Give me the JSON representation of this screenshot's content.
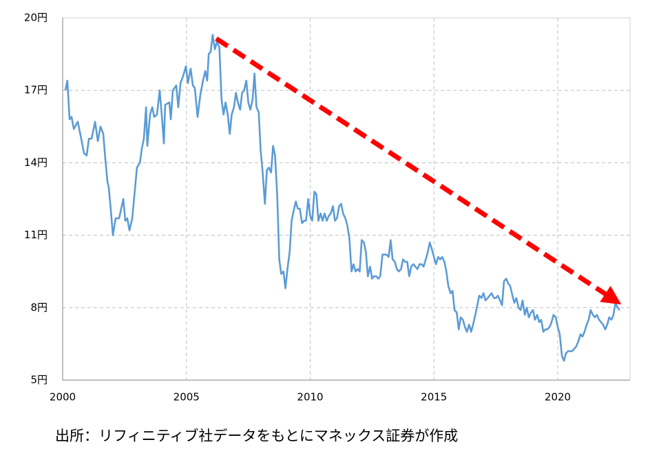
{
  "chart_data": {
    "type": "line",
    "footnote": "出所：リフィニティブ社データをもとにマネックス証券が作成",
    "xlim": [
      2000,
      2022.92
    ],
    "xticks": [
      2000,
      2005,
      2010,
      2015,
      2020
    ],
    "ylim": [
      5,
      20
    ],
    "yticks": [
      {
        "value": 5,
        "label": "5円"
      },
      {
        "value": 8,
        "label": "8円"
      },
      {
        "value": 11,
        "label": "11円"
      },
      {
        "value": 14,
        "label": "14円"
      },
      {
        "value": 17,
        "label": "17円"
      },
      {
        "value": 20,
        "label": "20円"
      }
    ],
    "grid": true,
    "x": [
      2000.11,
      2000.19,
      2000.28,
      2000.36,
      2000.45,
      2000.61,
      2000.75,
      2000.86,
      2000.97,
      2001.06,
      2001.17,
      2001.31,
      2001.42,
      2001.53,
      2001.64,
      2001.72,
      2001.81,
      2001.86,
      2001.95,
      2002.03,
      2002.14,
      2002.28,
      2002.45,
      2002.53,
      2002.61,
      2002.7,
      2002.81,
      2002.92,
      2003.0,
      2003.12,
      2003.2,
      2003.28,
      2003.37,
      2003.42,
      2003.53,
      2003.62,
      2003.7,
      2003.81,
      2003.92,
      2004.01,
      2004.09,
      2004.14,
      2004.31,
      2004.37,
      2004.45,
      2004.59,
      2004.67,
      2004.76,
      2004.87,
      2004.98,
      2005.06,
      2005.17,
      2005.26,
      2005.34,
      2005.45,
      2005.56,
      2005.67,
      2005.76,
      2005.84,
      2005.9,
      2005.98,
      2006.06,
      2006.15,
      2006.23,
      2006.33,
      2006.42,
      2006.5,
      2006.58,
      2006.67,
      2006.75,
      2006.83,
      2006.92,
      2007.0,
      2007.08,
      2007.17,
      2007.25,
      2007.33,
      2007.42,
      2007.5,
      2007.58,
      2007.67,
      2007.75,
      2007.83,
      2007.92,
      2008.0,
      2008.08,
      2008.17,
      2008.25,
      2008.33,
      2008.42,
      2008.5,
      2008.58,
      2008.67,
      2008.75,
      2008.83,
      2008.92,
      2009.0,
      2009.08,
      2009.17,
      2009.25,
      2009.33,
      2009.42,
      2009.5,
      2009.58,
      2009.67,
      2009.75,
      2009.83,
      2009.92,
      2010.0,
      2010.08,
      2010.17,
      2010.25,
      2010.33,
      2010.42,
      2010.5,
      2010.58,
      2010.67,
      2010.75,
      2010.83,
      2010.92,
      2011.0,
      2011.08,
      2011.17,
      2011.25,
      2011.33,
      2011.42,
      2011.5,
      2011.58,
      2011.67,
      2011.75,
      2011.83,
      2011.92,
      2012.0,
      2012.08,
      2012.17,
      2012.25,
      2012.33,
      2012.42,
      2012.5,
      2012.58,
      2012.67,
      2012.75,
      2012.83,
      2012.92,
      2013.0,
      2013.08,
      2013.17,
      2013.25,
      2013.33,
      2013.42,
      2013.5,
      2013.58,
      2013.67,
      2013.75,
      2013.83,
      2013.92,
      2014.0,
      2014.08,
      2014.17,
      2014.25,
      2014.33,
      2014.42,
      2014.5,
      2014.58,
      2014.67,
      2014.75,
      2014.83,
      2014.92,
      2015.0,
      2015.08,
      2015.17,
      2015.25,
      2015.33,
      2015.42,
      2015.5,
      2015.58,
      2015.67,
      2015.75,
      2015.83,
      2015.92,
      2016.0,
      2016.08,
      2016.17,
      2016.25,
      2016.33,
      2016.42,
      2016.5,
      2016.58,
      2016.67,
      2016.75,
      2016.83,
      2016.92,
      2017.0,
      2017.08,
      2017.17,
      2017.25,
      2017.33,
      2017.42,
      2017.5,
      2017.58,
      2017.67,
      2017.75,
      2017.83,
      2017.92,
      2018.0,
      2018.08,
      2018.17,
      2018.25,
      2018.33,
      2018.42,
      2018.5,
      2018.58,
      2018.67,
      2018.75,
      2018.83,
      2018.92,
      2019.0,
      2019.08,
      2019.17,
      2019.25,
      2019.33,
      2019.42,
      2019.5,
      2019.58,
      2019.67,
      2019.75,
      2019.83,
      2019.92,
      2020.0,
      2020.08,
      2020.17,
      2020.25,
      2020.33,
      2020.42,
      2020.5,
      2020.58,
      2020.67,
      2020.75,
      2020.83,
      2020.92,
      2021.0,
      2021.08,
      2021.17,
      2021.25,
      2021.33,
      2021.42,
      2021.5,
      2021.58,
      2021.67,
      2021.75,
      2021.83,
      2021.92,
      2022.0,
      2022.08,
      2022.17,
      2022.25,
      2022.33,
      2022.42,
      2022.5
    ],
    "series": [
      {
        "color": "#5b9bd5",
        "values": [
          17.0,
          17.4,
          15.8,
          15.9,
          15.4,
          15.7,
          15.0,
          14.4,
          14.3,
          15.0,
          15.0,
          15.7,
          14.9,
          15.5,
          15.2,
          14.2,
          13.2,
          13.0,
          12.0,
          11.0,
          11.7,
          11.7,
          12.5,
          11.6,
          11.7,
          11.2,
          11.7,
          12.9,
          13.8,
          14.0,
          14.6,
          15.0,
          16.3,
          14.7,
          16.0,
          16.3,
          15.9,
          16.0,
          17.0,
          15.9,
          14.8,
          16.4,
          16.5,
          15.8,
          17.0,
          17.2,
          16.3,
          17.3,
          17.6,
          18.0,
          17.3,
          17.9,
          17.2,
          17.1,
          15.9,
          16.8,
          17.4,
          17.8,
          17.4,
          18.5,
          18.6,
          19.3,
          18.7,
          19.0,
          18.8,
          16.6,
          16.0,
          16.5,
          16.0,
          15.2,
          16.0,
          16.3,
          16.9,
          16.5,
          16.2,
          16.9,
          17.0,
          17.4,
          16.5,
          16.2,
          16.6,
          17.7,
          16.3,
          16.1,
          14.5,
          13.6,
          12.3,
          13.7,
          13.8,
          13.6,
          14.7,
          14.3,
          12.6,
          10.0,
          9.4,
          9.5,
          8.8,
          9.6,
          10.3,
          11.6,
          12.0,
          12.4,
          12.1,
          12.1,
          11.5,
          11.6,
          11.6,
          12.5,
          11.8,
          11.6,
          12.8,
          12.7,
          11.6,
          11.9,
          11.6,
          11.9,
          11.6,
          11.8,
          11.9,
          12.2,
          11.6,
          11.7,
          12.2,
          12.3,
          11.9,
          11.7,
          11.4,
          10.9,
          9.5,
          9.8,
          9.5,
          9.6,
          9.5,
          10.8,
          10.7,
          10.3,
          9.3,
          9.7,
          9.2,
          9.3,
          9.3,
          9.2,
          9.3,
          10.2,
          10.2,
          10.2,
          10.1,
          10.8,
          10.0,
          9.9,
          9.6,
          9.5,
          9.6,
          10.0,
          9.9,
          9.9,
          9.3,
          9.7,
          9.8,
          9.7,
          9.6,
          9.8,
          9.8,
          9.7,
          10.0,
          10.3,
          10.7,
          10.4,
          10.1,
          9.8,
          10.1,
          10.0,
          10.1,
          9.9,
          9.5,
          8.9,
          8.6,
          8.7,
          7.9,
          7.8,
          7.1,
          7.6,
          7.5,
          7.2,
          7.0,
          7.3,
          7.0,
          7.3,
          7.7,
          8.1,
          8.5,
          8.4,
          8.6,
          8.3,
          8.4,
          8.5,
          8.6,
          8.4,
          8.4,
          8.5,
          8.3,
          8.1,
          9.1,
          9.2,
          9.0,
          8.9,
          8.5,
          8.2,
          8.4,
          8.0,
          7.9,
          8.3,
          7.7,
          8.0,
          7.6,
          7.8,
          7.9,
          7.5,
          7.7,
          7.4,
          7.5,
          7.0,
          7.1,
          7.1,
          7.2,
          7.4,
          7.7,
          7.6,
          7.2,
          6.9,
          6.0,
          5.8,
          6.1,
          6.2,
          6.2,
          6.2,
          6.3,
          6.4,
          6.6,
          6.9,
          6.8,
          7.0,
          7.3,
          7.5,
          7.9,
          7.7,
          7.6,
          7.7,
          7.5,
          7.4,
          7.3,
          7.1,
          7.3,
          7.6,
          7.5,
          7.7,
          8.2,
          8.0,
          7.9
        ]
      }
    ]
  }
}
